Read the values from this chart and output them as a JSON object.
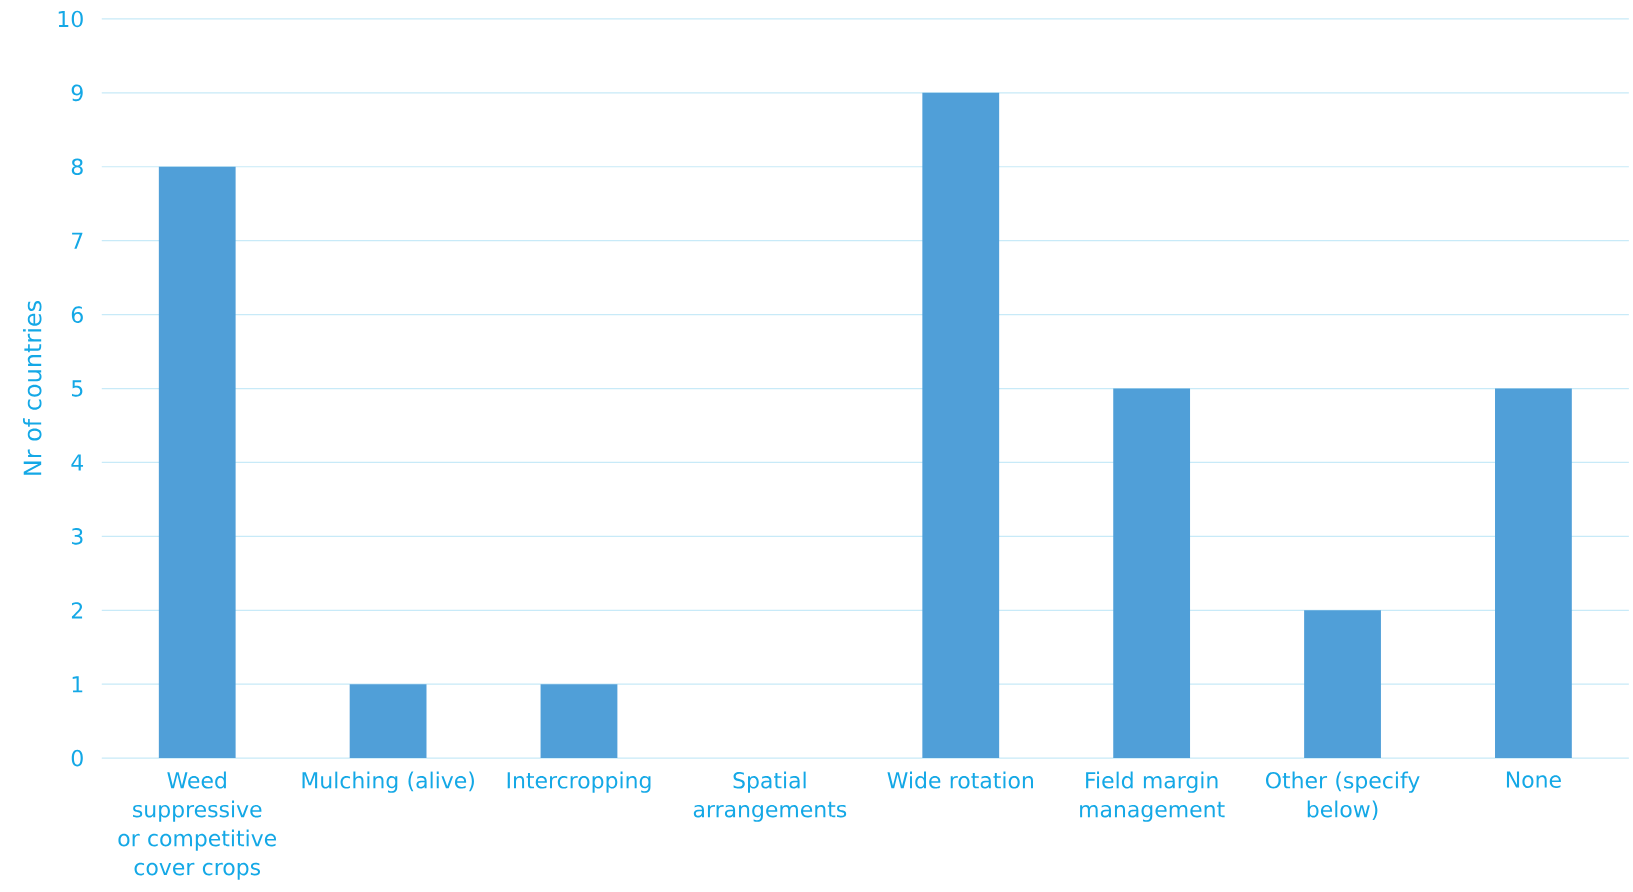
{
  "chart_data": {
    "type": "bar",
    "ylabel": "Nr of countries",
    "categories": [
      "Weed suppressive or competitive cover crops",
      "Mulching (alive)",
      "Intercropping",
      "Spatial arrangements",
      "Wide rotation",
      "Field margin management",
      "Other (specify below)",
      "None"
    ],
    "values": [
      8,
      1,
      1,
      0,
      9,
      5,
      2,
      5
    ],
    "color": "#509fd8",
    "ylim": [
      0,
      10
    ],
    "yticks": [
      0,
      1,
      2,
      3,
      4,
      5,
      6,
      7,
      8,
      9,
      10
    ],
    "grid": "y"
  }
}
